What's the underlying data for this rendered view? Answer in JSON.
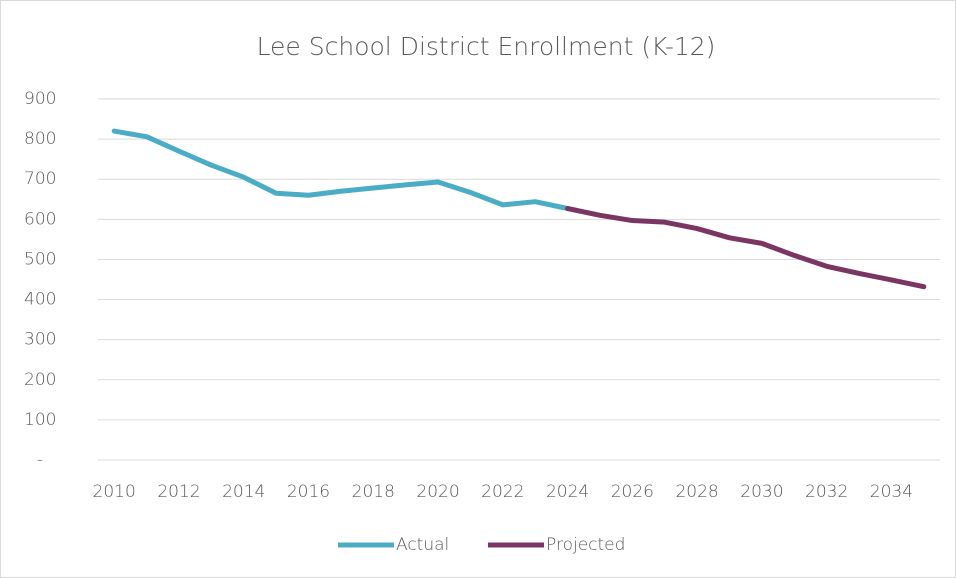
{
  "chart_data": {
    "type": "line",
    "title": "Lee School District Enrollment (K-12)",
    "x": [
      2010,
      2011,
      2012,
      2013,
      2014,
      2015,
      2016,
      2017,
      2018,
      2019,
      2020,
      2021,
      2022,
      2023,
      2024,
      2025,
      2026,
      2027,
      2028,
      2029,
      2030,
      2031,
      2032,
      2033,
      2034,
      2035
    ],
    "series": [
      {
        "name": "Actual",
        "color": "#4bacc6",
        "values": [
          820,
          806,
          770,
          735,
          705,
          665,
          660,
          670,
          678,
          686,
          693,
          667,
          636,
          644,
          627,
          null,
          null,
          null,
          null,
          null,
          null,
          null,
          null,
          null,
          null,
          null
        ]
      },
      {
        "name": "Projected",
        "color": "#7b3563",
        "values": [
          null,
          null,
          null,
          null,
          null,
          null,
          null,
          null,
          null,
          null,
          null,
          null,
          null,
          null,
          627,
          610,
          597,
          593,
          577,
          554,
          540,
          510,
          483,
          465,
          449,
          432
        ]
      }
    ],
    "xlim": [
      2009.5,
      2035.5
    ],
    "xticks": [
      2010,
      2012,
      2014,
      2016,
      2018,
      2020,
      2022,
      2024,
      2026,
      2028,
      2030,
      2032,
      2034
    ],
    "ylim": [
      0,
      900
    ],
    "yticks": [
      {
        "value": 0,
        "label": "-"
      },
      100,
      200,
      300,
      400,
      500,
      600,
      700,
      800,
      900
    ],
    "grid": true,
    "legend": "bottom"
  }
}
